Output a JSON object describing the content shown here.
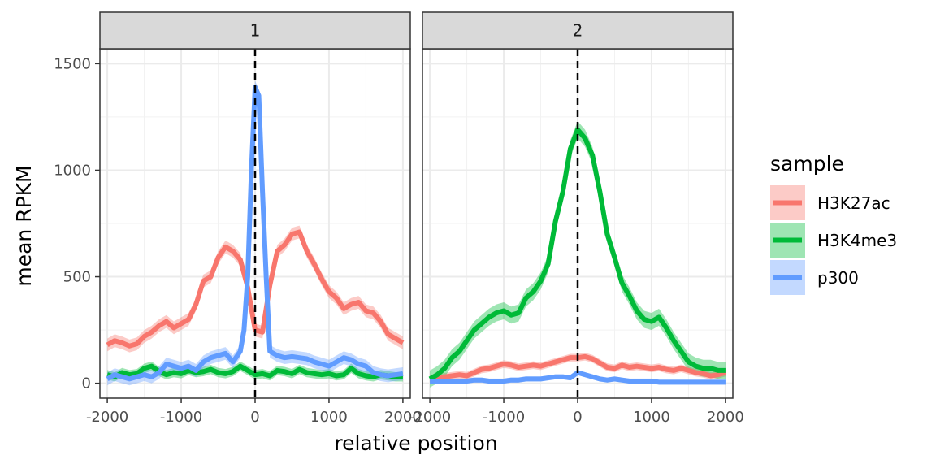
{
  "chart_data": {
    "type": "line",
    "xlabel": "relative position",
    "ylabel": "mean RPKM",
    "xlim": [
      -2100,
      2100
    ],
    "ylim": [
      -70,
      1570
    ],
    "x_ticks": [
      -2000,
      -1000,
      0,
      1000,
      2000
    ],
    "x_tick_labels": [
      "-2000",
      "-1000",
      "0",
      "1000",
      "2000"
    ],
    "y_ticks": [
      0,
      500,
      1000,
      1500
    ],
    "y_tick_labels": [
      "0",
      "500",
      "1000",
      "1500"
    ],
    "reference_line_x": 0,
    "grid": true,
    "legend": {
      "title": "sample",
      "placement": "right",
      "entries": [
        {
          "label": "H3K27ac",
          "color": "#F8766D"
        },
        {
          "label": "H3K4me3",
          "color": "#00BA38"
        },
        {
          "label": "p300",
          "color": "#619CFF"
        }
      ]
    },
    "panels": [
      {
        "label": "1",
        "series": [
          {
            "name": "H3K27ac",
            "color": "#F8766D",
            "band": 30,
            "x": [
              -2000,
              -1900,
              -1800,
              -1700,
              -1600,
              -1500,
              -1400,
              -1300,
              -1200,
              -1100,
              -1000,
              -900,
              -800,
              -700,
              -600,
              -500,
              -400,
              -300,
              -200,
              -100,
              0,
              100,
              200,
              300,
              400,
              500,
              600,
              700,
              800,
              900,
              1000,
              1100,
              1200,
              1300,
              1400,
              1500,
              1600,
              1700,
              1800,
              1900,
              2000
            ],
            "y": [
              180,
              200,
              190,
              175,
              185,
              220,
              240,
              270,
              290,
              260,
              280,
              300,
              370,
              480,
              500,
              590,
              640,
              620,
              580,
              450,
              250,
              240,
              460,
              620,
              650,
              700,
              710,
              620,
              560,
              490,
              430,
              400,
              350,
              370,
              380,
              340,
              330,
              290,
              230,
              210,
              190
            ]
          },
          {
            "name": "H3K4me3",
            "color": "#00BA38",
            "band": 22,
            "x": [
              -2000,
              -1900,
              -1800,
              -1700,
              -1600,
              -1500,
              -1400,
              -1300,
              -1200,
              -1100,
              -1000,
              -900,
              -800,
              -700,
              -600,
              -500,
              -400,
              -300,
              -200,
              -100,
              0,
              100,
              200,
              300,
              400,
              500,
              600,
              700,
              800,
              900,
              1000,
              1100,
              1200,
              1300,
              1400,
              1500,
              1600,
              1700,
              1800,
              1900,
              2000
            ],
            "y": [
              40,
              30,
              50,
              40,
              45,
              70,
              80,
              55,
              40,
              50,
              45,
              60,
              50,
              55,
              65,
              50,
              45,
              55,
              80,
              60,
              40,
              45,
              35,
              60,
              55,
              45,
              65,
              50,
              45,
              40,
              45,
              35,
              40,
              70,
              45,
              35,
              30,
              40,
              35,
              30,
              30
            ]
          },
          {
            "name": "p300",
            "color": "#619CFF",
            "band": 30,
            "x": [
              -2000,
              -1900,
              -1800,
              -1700,
              -1600,
              -1500,
              -1400,
              -1300,
              -1200,
              -1100,
              -1000,
              -900,
              -800,
              -700,
              -600,
              -500,
              -400,
              -300,
              -200,
              -150,
              -100,
              -50,
              0,
              50,
              100,
              150,
              200,
              300,
              400,
              500,
              600,
              700,
              800,
              900,
              1000,
              1100,
              1200,
              1300,
              1400,
              1500,
              1600,
              1700,
              1800,
              1900,
              2000
            ],
            "y": [
              20,
              40,
              30,
              20,
              30,
              40,
              30,
              50,
              90,
              80,
              70,
              80,
              60,
              100,
              120,
              130,
              140,
              100,
              150,
              250,
              500,
              1000,
              1390,
              1350,
              900,
              500,
              150,
              130,
              120,
              125,
              120,
              115,
              100,
              90,
              80,
              100,
              120,
              110,
              90,
              80,
              50,
              40,
              35,
              40,
              45
            ]
          }
        ]
      },
      {
        "label": "2",
        "series": [
          {
            "name": "H3K27ac",
            "color": "#F8766D",
            "band": 18,
            "x": [
              -2000,
              -1900,
              -1800,
              -1700,
              -1600,
              -1500,
              -1400,
              -1300,
              -1200,
              -1100,
              -1000,
              -900,
              -800,
              -700,
              -600,
              -500,
              -400,
              -300,
              -200,
              -100,
              0,
              100,
              200,
              300,
              400,
              500,
              600,
              700,
              800,
              900,
              1000,
              1100,
              1200,
              1300,
              1400,
              1500,
              1600,
              1700,
              1800,
              1900,
              2000
            ],
            "y": [
              20,
              25,
              30,
              35,
              40,
              35,
              50,
              65,
              70,
              80,
              90,
              85,
              75,
              80,
              85,
              80,
              90,
              100,
              110,
              120,
              120,
              125,
              115,
              95,
              75,
              70,
              85,
              75,
              80,
              75,
              70,
              75,
              65,
              60,
              70,
              60,
              50,
              45,
              35,
              40,
              50
            ]
          },
          {
            "name": "H3K4me3",
            "color": "#00BA38",
            "band": 40,
            "x": [
              -2000,
              -1900,
              -1800,
              -1700,
              -1600,
              -1500,
              -1400,
              -1300,
              -1200,
              -1100,
              -1000,
              -900,
              -800,
              -700,
              -600,
              -500,
              -400,
              -300,
              -200,
              -100,
              0,
              100,
              200,
              300,
              400,
              500,
              600,
              700,
              800,
              900,
              1000,
              1100,
              1200,
              1300,
              1400,
              1500,
              1600,
              1700,
              1800,
              1900,
              2000
            ],
            "y": [
              20,
              40,
              70,
              120,
              150,
              200,
              250,
              280,
              310,
              330,
              340,
              320,
              330,
              400,
              430,
              480,
              560,
              760,
              900,
              1100,
              1190,
              1150,
              1070,
              900,
              700,
              590,
              470,
              410,
              340,
              300,
              290,
              310,
              260,
              200,
              150,
              100,
              80,
              70,
              70,
              60,
              60
            ]
          },
          {
            "name": "p300",
            "color": "#619CFF",
            "band": 12,
            "x": [
              -2000,
              -1900,
              -1800,
              -1700,
              -1600,
              -1500,
              -1400,
              -1300,
              -1200,
              -1100,
              -1000,
              -900,
              -800,
              -700,
              -600,
              -500,
              -400,
              -300,
              -200,
              -100,
              0,
              100,
              200,
              300,
              400,
              500,
              600,
              700,
              800,
              900,
              1000,
              1100,
              1200,
              1300,
              1400,
              1500,
              1600,
              1700,
              1800,
              1900,
              2000
            ],
            "y": [
              10,
              10,
              10,
              10,
              10,
              10,
              15,
              15,
              10,
              10,
              10,
              15,
              15,
              20,
              20,
              20,
              25,
              30,
              30,
              25,
              50,
              40,
              30,
              20,
              15,
              20,
              15,
              10,
              10,
              10,
              10,
              5,
              5,
              5,
              5,
              5,
              5,
              5,
              5,
              5,
              5
            ]
          }
        ]
      }
    ]
  }
}
